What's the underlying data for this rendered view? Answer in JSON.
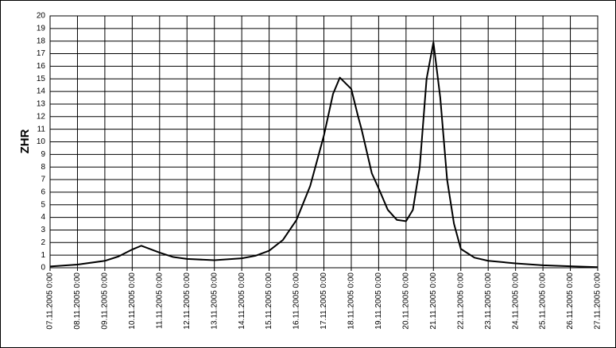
{
  "chart_data": {
    "type": "line",
    "ylabel": "ZHR",
    "series": [
      {
        "color": "#000000",
        "x": [
          "2005-11-07T00:00",
          "2005-11-08T00:00",
          "2005-11-09T00:00",
          "2005-11-09T12:00",
          "2005-11-10T00:00",
          "2005-11-10T08:00",
          "2005-11-11T00:00",
          "2005-11-11T12:00",
          "2005-11-12T00:00",
          "2005-11-13T00:00",
          "2005-11-14T00:00",
          "2005-11-14T12:00",
          "2005-11-15T00:00",
          "2005-11-15T12:00",
          "2005-11-16T00:00",
          "2005-11-16T12:00",
          "2005-11-17T00:00",
          "2005-11-17T08:00",
          "2005-11-17T14:00",
          "2005-11-18T00:00",
          "2005-11-18T06:00",
          "2005-11-18T09:00",
          "2005-11-18T18:00",
          "2005-11-19T00:00",
          "2005-11-19T08:00",
          "2005-11-19T16:00",
          "2005-11-20T00:00",
          "2005-11-20T06:00",
          "2005-11-20T12:00",
          "2005-11-20T18:00",
          "2005-11-21T00:00",
          "2005-11-21T06:00",
          "2005-11-21T12:00",
          "2005-11-21T18:00",
          "2005-11-22T00:00",
          "2005-11-22T12:00",
          "2005-11-23T00:00",
          "2005-11-24T00:00",
          "2005-11-25T00:00",
          "2005-11-26T00:00",
          "2005-11-27T00:00"
        ],
        "values": [
          0.1,
          0.25,
          0.55,
          0.9,
          1.45,
          1.75,
          1.2,
          0.85,
          0.7,
          0.6,
          0.75,
          0.95,
          1.35,
          2.2,
          3.8,
          6.5,
          10.5,
          13.8,
          15.1,
          14.2,
          12,
          11,
          7.5,
          6.3,
          4.6,
          3.8,
          3.7,
          4.6,
          8,
          15,
          17.9,
          13.5,
          7,
          3.5,
          1.5,
          0.8,
          0.55,
          0.35,
          0.2,
          0.12,
          0.05
        ]
      }
    ],
    "xlim": [
      "2005-11-07T00:00",
      "2005-11-27T00:00"
    ],
    "xticks": [
      {
        "value": "2005-11-07T00:00",
        "label": "07.11.2005 0:00"
      },
      {
        "value": "2005-11-08T00:00",
        "label": "08.11.2005 0:00"
      },
      {
        "value": "2005-11-09T00:00",
        "label": "09.11.2005 0:00"
      },
      {
        "value": "2005-11-10T00:00",
        "label": "10.11.2005 0:00"
      },
      {
        "value": "2005-11-11T00:00",
        "label": "11.11.2005 0:00"
      },
      {
        "value": "2005-11-12T00:00",
        "label": "12.11.2005 0:00"
      },
      {
        "value": "2005-11-13T00:00",
        "label": "13.11.2005 0:00"
      },
      {
        "value": "2005-11-14T00:00",
        "label": "14.11.2005 0:00"
      },
      {
        "value": "2005-11-15T00:00",
        "label": "15.11.2005 0:00"
      },
      {
        "value": "2005-11-16T00:00",
        "label": "16.11.2005 0:00"
      },
      {
        "value": "2005-11-17T00:00",
        "label": "17.11.2005 0:00"
      },
      {
        "value": "2005-11-18T00:00",
        "label": "18.11.2005 0:00"
      },
      {
        "value": "2005-11-19T00:00",
        "label": "19.11.2005 0:00"
      },
      {
        "value": "2005-11-20T00:00",
        "label": "20.11.2005 0:00"
      },
      {
        "value": "2005-11-21T00:00",
        "label": "21.11.2005 0:00"
      },
      {
        "value": "2005-11-22T00:00",
        "label": "22.11.2005 0:00"
      },
      {
        "value": "2005-11-23T00:00",
        "label": "23.11.2005 0:00"
      },
      {
        "value": "2005-11-24T00:00",
        "label": "24.11.2005 0:00"
      },
      {
        "value": "2005-11-25T00:00",
        "label": "25.11.2005 0:00"
      },
      {
        "value": "2005-11-26T00:00",
        "label": "26.11.2005 0:00"
      },
      {
        "value": "2005-11-27T00:00",
        "label": "27.11.2005 0:00"
      }
    ],
    "ylim": [
      0,
      20
    ],
    "yticks": [
      0,
      1,
      2,
      3,
      4,
      5,
      6,
      7,
      8,
      9,
      10,
      11,
      12,
      13,
      14,
      15,
      16,
      17,
      18,
      19,
      20
    ],
    "grid": true
  }
}
